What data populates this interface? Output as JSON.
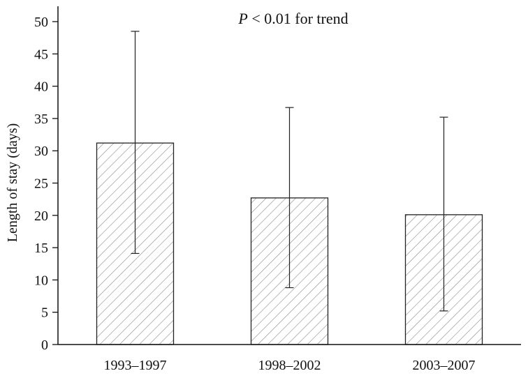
{
  "chart_data": {
    "type": "bar",
    "categories": [
      "1993–1997",
      "1998–2002",
      "2003–2007"
    ],
    "values": [
      31.2,
      22.7,
      20.1
    ],
    "error_bars": [
      {
        "low": 14.1,
        "high": 48.5
      },
      {
        "low": 8.8,
        "high": 36.7
      },
      {
        "low": 5.2,
        "high": 35.2
      }
    ],
    "xlabel": "",
    "ylabel": "Length of stay (days)",
    "ylim": [
      0,
      50
    ],
    "yticks": [
      0,
      5,
      10,
      15,
      20,
      25,
      30,
      35,
      40,
      45,
      50
    ],
    "annotation": {
      "italic": "P",
      "text": " < 0.01 for trend"
    },
    "grid": false,
    "bar_fill": "hatched",
    "colors": {
      "bar_stroke": "#222222",
      "hatch": "#888888",
      "axis": "#111111"
    }
  }
}
